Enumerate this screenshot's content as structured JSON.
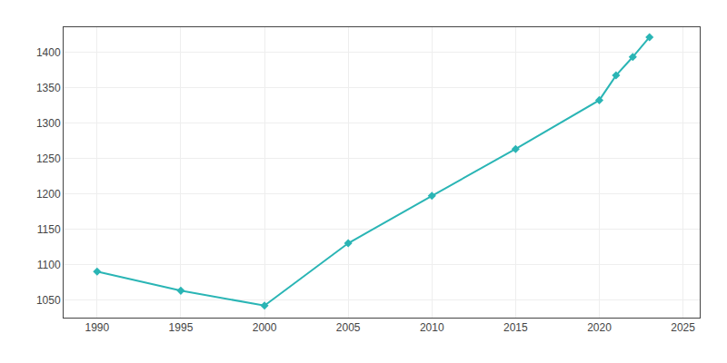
{
  "chart_data": {
    "type": "line",
    "x": [
      1990,
      1995,
      2000,
      2005,
      2010,
      2015,
      2020,
      2021,
      2022,
      2023
    ],
    "values": [
      1090,
      1063,
      1042,
      1130,
      1197,
      1263,
      1332,
      1367,
      1393,
      1421
    ],
    "color": "#2ab5b5",
    "marker": "diamond",
    "xlim": [
      1988,
      2026
    ],
    "ylim": [
      1025,
      1435
    ],
    "xticks": [
      1990,
      1995,
      2000,
      2005,
      2010,
      2015,
      2020,
      2025
    ],
    "yticks": [
      1050,
      1100,
      1150,
      1200,
      1250,
      1300,
      1350,
      1400
    ],
    "grid": true
  }
}
